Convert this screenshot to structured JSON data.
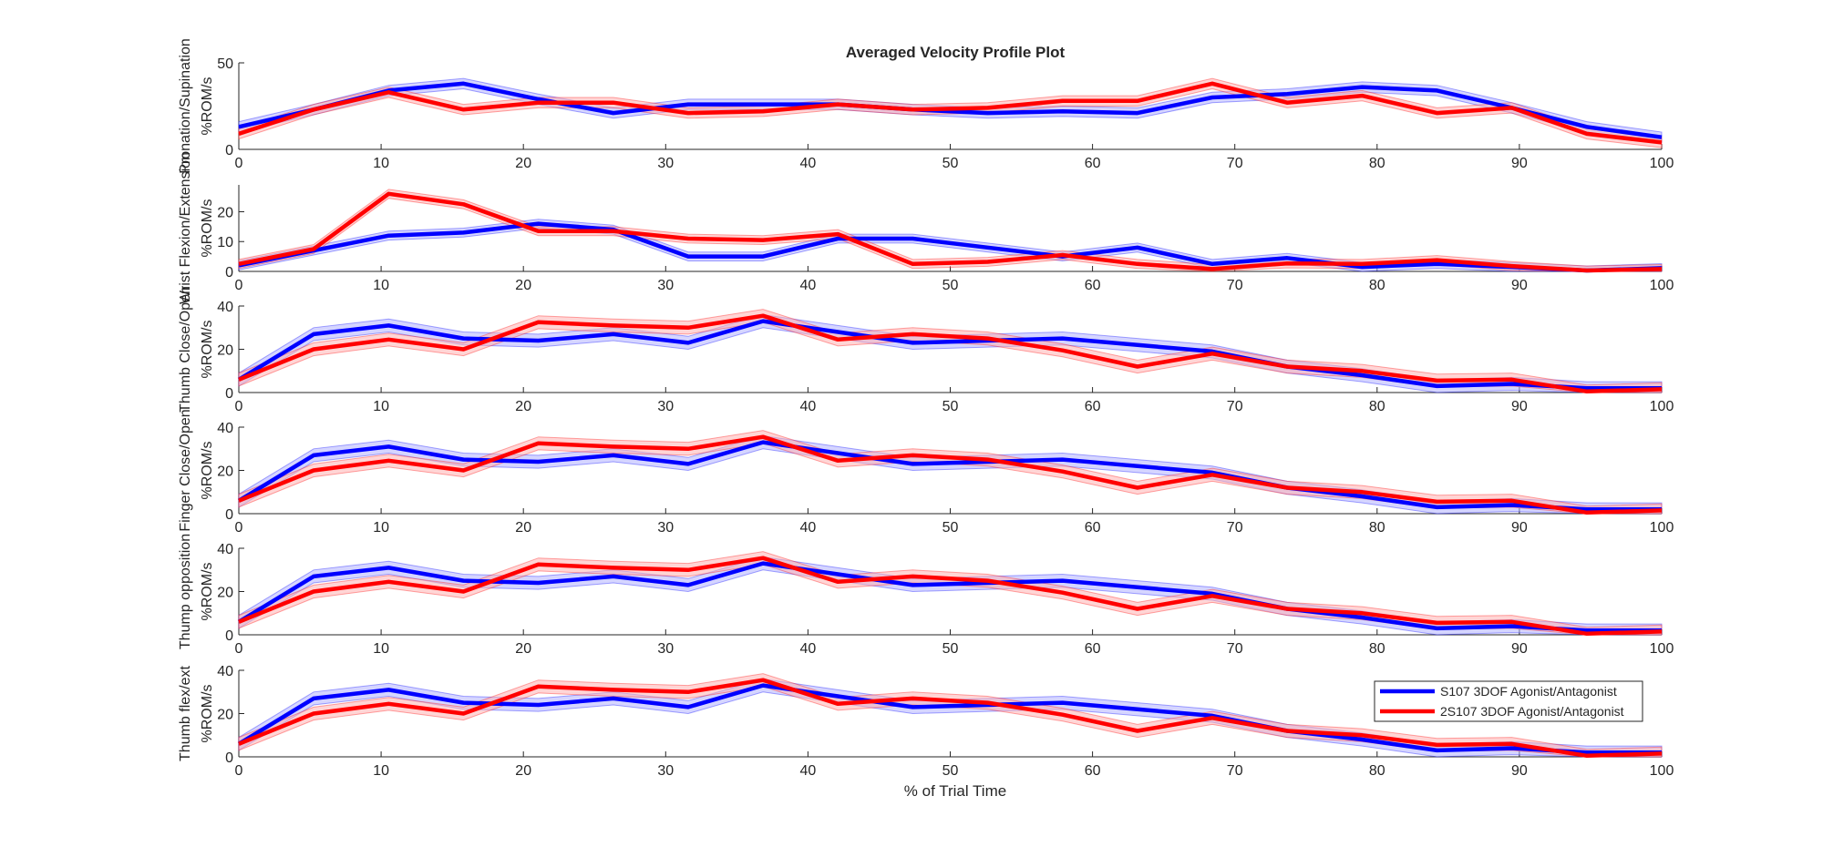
{
  "chart_data": {
    "type": "line",
    "title": "Averaged Velocity Profile Plot",
    "xlabel": "% of Trial Time",
    "xlim": [
      0,
      100
    ],
    "xticks": [
      0,
      10,
      20,
      30,
      40,
      50,
      60,
      70,
      80,
      90,
      100
    ],
    "x": [
      0,
      5.26,
      10.53,
      15.79,
      21.05,
      26.32,
      31.58,
      36.84,
      42.11,
      47.37,
      52.63,
      57.89,
      63.16,
      68.42,
      73.68,
      78.95,
      84.21,
      89.47,
      94.74,
      100
    ],
    "legend": {
      "position": "bottom-right",
      "entries": [
        "S107 3DOF Agonist/Antagonist",
        "2S107 3DOF Agonist/Antagonist"
      ]
    },
    "colors": {
      "series1": "#0000ff",
      "series2": "#ff0000",
      "band1": "#b3b3ff",
      "band2": "#ffb3b3"
    },
    "subplots": [
      {
        "ylabel_top": "Pronation/Supination",
        "ylabel_bottom": "%ROM/s",
        "ylim": [
          0,
          50
        ],
        "yticks": [
          0,
          50
        ],
        "series": [
          {
            "name": "S107 3DOF Agonist/Antagonist",
            "values": [
              13,
              23,
              34,
              38,
              29,
              21,
              26,
              26,
              26,
              23,
              21,
              22,
              21,
              30,
              32,
              36,
              34,
              24,
              13,
              7
            ],
            "band": 3
          },
          {
            "name": "2S107 3DOF Agonist/Antagonist",
            "values": [
              9,
              23,
              33,
              23,
              27,
              27,
              21,
              22,
              26,
              23,
              24,
              28,
              28,
              38,
              27,
              31,
              21,
              24,
              9,
              4
            ],
            "band": 3
          }
        ]
      },
      {
        "ylabel_top": "Wrist Flexion/Extension",
        "ylabel_bottom": "%ROM/s",
        "ylim": [
          0,
          29
        ],
        "yticks": [
          0,
          10,
          20
        ],
        "series": [
          {
            "name": "S107 3DOF Agonist/Antagonist",
            "values": [
              2,
              7,
              12,
              13,
              16,
              14,
              5,
              5,
              11,
              11,
              8,
              5,
              8,
              2.5,
              4.5,
              1.5,
              2.5,
              1.5,
              0.3,
              1.1
            ],
            "band": 1.5
          },
          {
            "name": "2S107 3DOF Agonist/Antagonist",
            "values": [
              2.5,
              7.5,
              26,
              22.5,
              13.5,
              13.5,
              11,
              10.5,
              12.5,
              2.5,
              3.2,
              5.5,
              2.5,
              0.8,
              2.7,
              2.5,
              3.8,
              1.8,
              0.3,
              0.8
            ],
            "band": 1.5
          }
        ]
      },
      {
        "ylabel_top": "Thumb Close/Open",
        "ylabel_bottom": "%ROM/s",
        "ylim": [
          0,
          40
        ],
        "yticks": [
          0,
          20,
          40
        ],
        "series": [
          {
            "name": "S107 3DOF Agonist/Antagonist",
            "values": [
              6,
              27,
              31,
              25,
              24,
              27,
              23,
              33,
              28,
              23,
              24,
              25,
              22,
              19,
              12,
              8,
              3,
              4,
              2,
              2
            ],
            "band": 3
          },
          {
            "name": "2S107 3DOF Agonist/Antagonist",
            "values": [
              6,
              20,
              24.5,
              20,
              32.5,
              31,
              30,
              35.5,
              24.5,
              27,
              25,
              19.5,
              12,
              18,
              12,
              10,
              5.5,
              6,
              0.5,
              1.5
            ],
            "band": 3
          }
        ]
      },
      {
        "ylabel_top": "Finger Close/Open",
        "ylabel_bottom": "%ROM/s",
        "ylim": [
          0,
          40
        ],
        "yticks": [
          0,
          20,
          40
        ],
        "series": [
          {
            "name": "S107 3DOF Agonist/Antagonist",
            "values": [
              6,
              27,
              31,
              25,
              24,
              27,
              23,
              33,
              28,
              23,
              24,
              25,
              22,
              19,
              12,
              8,
              3,
              4,
              2,
              2
            ],
            "band": 3
          },
          {
            "name": "2S107 3DOF Agonist/Antagonist",
            "values": [
              6,
              20,
              24.5,
              20,
              32.5,
              31,
              30,
              35.5,
              24.5,
              27,
              25,
              19.5,
              12,
              18,
              12,
              10,
              5.5,
              6,
              0.5,
              1.5
            ],
            "band": 3
          }
        ]
      },
      {
        "ylabel_top": "Thump opposition",
        "ylabel_bottom": "%ROM/s",
        "ylim": [
          0,
          40
        ],
        "yticks": [
          0,
          20,
          40
        ],
        "series": [
          {
            "name": "S107 3DOF Agonist/Antagonist",
            "values": [
              6,
              27,
              31,
              25,
              24,
              27,
              23,
              33,
              28,
              23,
              24,
              25,
              22,
              19,
              12,
              8,
              3,
              4,
              2,
              2
            ],
            "band": 3
          },
          {
            "name": "2S107 3DOF Agonist/Antagonist",
            "values": [
              6,
              20,
              24.5,
              20,
              32.5,
              31,
              30,
              35.5,
              24.5,
              27,
              25,
              19.5,
              12,
              18,
              12,
              10,
              5.5,
              6,
              0.5,
              1.5
            ],
            "band": 3
          }
        ]
      },
      {
        "ylabel_top": "Thumb flex/ext",
        "ylabel_bottom": "%ROM/s",
        "ylim": [
          0,
          40
        ],
        "yticks": [
          0,
          20,
          40
        ],
        "series": [
          {
            "name": "S107 3DOF Agonist/Antagonist",
            "values": [
              6,
              27,
              31,
              25,
              24,
              27,
              23,
              33,
              28,
              23,
              24,
              25,
              22,
              19,
              12,
              8,
              3,
              4,
              2,
              2
            ],
            "band": 3
          },
          {
            "name": "2S107 3DOF Agonist/Antagonist",
            "values": [
              6,
              20,
              24.5,
              20,
              32.5,
              31,
              30,
              35.5,
              24.5,
              27,
              25,
              19.5,
              12,
              18,
              12,
              10,
              5.5,
              6,
              0.5,
              1.5
            ],
            "band": 3
          }
        ]
      }
    ]
  }
}
